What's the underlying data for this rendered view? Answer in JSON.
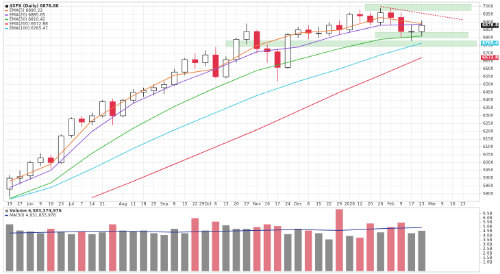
{
  "chart_data": [
    {
      "type": "candlestick",
      "title": "$SPX (Daily) 6878.88",
      "xlim": [
        -0.6,
        45.6
      ],
      "xticks": [
        {
          "value": 0,
          "label": "19"
        },
        {
          "value": 1,
          "label": "27"
        },
        {
          "value": 2,
          "label": "Jun"
        },
        {
          "value": 3,
          "label": "9"
        },
        {
          "value": 4,
          "label": "16"
        },
        {
          "value": 5,
          "label": "23"
        },
        {
          "value": 6,
          "label": "Jul"
        },
        {
          "value": 7,
          "label": "7"
        },
        {
          "value": 8,
          "label": "14"
        },
        {
          "value": 9,
          "label": "21"
        },
        {
          "value": 11,
          "label": "Aug"
        },
        {
          "value": 12,
          "label": "11"
        },
        {
          "value": 13,
          "label": "18"
        },
        {
          "value": 14,
          "label": "25"
        },
        {
          "value": 15,
          "label": "Sep"
        },
        {
          "value": 16,
          "label": "8"
        },
        {
          "value": 17,
          "label": "15"
        },
        {
          "value": 18,
          "label": "22"
        },
        {
          "value": 19,
          "label": "29Oct"
        },
        {
          "value": 20,
          "label": "6"
        },
        {
          "value": 21,
          "label": "13"
        },
        {
          "value": 22,
          "label": "20"
        },
        {
          "value": 23,
          "label": "27"
        },
        {
          "value": 24,
          "label": "Nov"
        },
        {
          "value": 25,
          "label": "10"
        },
        {
          "value": 26,
          "label": "17"
        },
        {
          "value": 27,
          "label": "24"
        },
        {
          "value": 28,
          "label": "Dec"
        },
        {
          "value": 29,
          "label": "8"
        },
        {
          "value": 30,
          "label": "15"
        },
        {
          "value": 31,
          "label": "22"
        },
        {
          "value": 32,
          "label": "29"
        },
        {
          "value": 33,
          "label": "2026"
        },
        {
          "value": 34,
          "label": "12"
        },
        {
          "value": 35,
          "label": "20"
        },
        {
          "value": 36,
          "label": "26"
        },
        {
          "value": 37,
          "label": "Feb"
        },
        {
          "value": 38,
          "label": "9"
        },
        {
          "value": 39,
          "label": "17"
        },
        {
          "value": 40,
          "label": "23"
        },
        {
          "value": 41,
          "label": "Mar"
        },
        {
          "value": 42,
          "label": "9"
        },
        {
          "value": 43,
          "label": "16"
        },
        {
          "value": 44,
          "label": "23"
        }
      ],
      "open": [
        5830,
        5900,
        5915,
        6000,
        6030,
        6000,
        6175,
        6280,
        6262,
        6300,
        6390,
        6300,
        6400,
        6452,
        6460,
        6480,
        6500,
        6580,
        6660,
        6640,
        6690,
        6550,
        6660,
        6790,
        6840,
        6730,
        6710,
        6610,
        6820,
        6850,
        6830,
        6830,
        6880,
        6850,
        6950,
        6940,
        6900,
        6960,
        6930,
        6840,
        6840
      ],
      "high": [
        5920,
        5950,
        6010,
        6060,
        6050,
        6180,
        6290,
        6300,
        6320,
        6400,
        6410,
        6410,
        6470,
        6480,
        6500,
        6520,
        6600,
        6670,
        6700,
        6720,
        6740,
        6680,
        6800,
        6890,
        6850,
        6760,
        6730,
        6830,
        6870,
        6880,
        6870,
        6900,
        6910,
        6960,
        6980,
        6960,
        6990,
        6990,
        6960,
        6880,
        6910
      ],
      "low": [
        5780,
        5860,
        5890,
        5980,
        5960,
        5990,
        6160,
        6230,
        6240,
        6290,
        6240,
        6290,
        6380,
        6420,
        6430,
        6440,
        6490,
        6560,
        6600,
        6620,
        6540,
        6540,
        6640,
        6760,
        6700,
        6640,
        6520,
        6600,
        6800,
        6790,
        6800,
        6810,
        6820,
        6840,
        6900,
        6880,
        6880,
        6880,
        6800,
        6780,
        6810
      ],
      "close": [
        5900,
        5910,
        6000,
        6030,
        6000,
        6170,
        6280,
        6260,
        6300,
        6390,
        6300,
        6400,
        6450,
        6460,
        6480,
        6500,
        6580,
        6660,
        6640,
        6690,
        6550,
        6660,
        6790,
        6840,
        6730,
        6710,
        6610,
        6820,
        6850,
        6830,
        6830,
        6880,
        6850,
        6950,
        6940,
        6900,
        6960,
        6930,
        6840,
        6840,
        6878.88
      ],
      "up_color": "#ffffff",
      "down_color": "#e0304a",
      "outline": "#222222",
      "ylim": [
        5760,
        7020
      ],
      "yticks": [
        5800,
        5850,
        5900,
        5950,
        6000,
        6050,
        6100,
        6150,
        6200,
        6250,
        6300,
        6350,
        6400,
        6450,
        6500,
        6550,
        6600,
        6650,
        6700,
        6750,
        6800,
        6850,
        6900,
        6950,
        7000
      ],
      "grid": true,
      "series": [
        {
          "name": "EMA(5) 6890.22",
          "color": "#ee7a36",
          "x": [
            0,
            4,
            8,
            12,
            16,
            20,
            24,
            28,
            32,
            36,
            40
          ],
          "values": [
            5880,
            5990,
            6270,
            6430,
            6560,
            6600,
            6750,
            6830,
            6850,
            6930,
            6890.22
          ]
        },
        {
          "name": "EMA(20) 6885.65",
          "color": "#8a52d4",
          "x": [
            0,
            4,
            8,
            12,
            16,
            20,
            24,
            28,
            32,
            36,
            40
          ],
          "values": [
            5840,
            5950,
            6200,
            6380,
            6500,
            6600,
            6710,
            6740,
            6820,
            6880,
            6885.65
          ]
        },
        {
          "name": "EMA(50) 6810.42",
          "color": "#3cb83c",
          "x": [
            0,
            4,
            8,
            12,
            16,
            20,
            24,
            28,
            32,
            36,
            40
          ],
          "values": [
            5770,
            5870,
            6060,
            6220,
            6360,
            6480,
            6590,
            6660,
            6730,
            6790,
            6810.42
          ]
        },
        {
          "name": "EMA(200) 6672.88",
          "color": "#e0304a",
          "x": [
            8,
            12,
            16,
            20,
            24,
            28,
            32,
            36,
            40
          ],
          "values": [
            5775,
            5880,
            5990,
            6100,
            6210,
            6330,
            6450,
            6560,
            6672.88
          ]
        },
        {
          "name": "EMA(100) 6765.47",
          "color": "#3ac6e0",
          "x": [
            0,
            4,
            8,
            12,
            16,
            20,
            24,
            28,
            32,
            36,
            40
          ],
          "values": [
            5765,
            5840,
            5960,
            6090,
            6210,
            6320,
            6430,
            6520,
            6600,
            6690,
            6765.47
          ]
        }
      ],
      "zones": [
        {
          "x": [
            34.5,
            44.8
          ],
          "y": [
            6975,
            7015
          ]
        },
        {
          "x": [
            35.5,
            44.5
          ],
          "y": [
            6800,
            6835
          ]
        },
        {
          "x": [
            21,
            45.3
          ],
          "y": [
            6745,
            6780
          ]
        }
      ],
      "zone_color": "#cdebcf",
      "trendline": {
        "x": [
          36,
          44
        ],
        "y": [
          7000,
          6915
        ],
        "color": "#e0304a"
      }
    },
    {
      "type": "bar",
      "title": "Volume 4,583,374,976",
      "xlim": [
        -0.6,
        45.6
      ],
      "values": [
        5300000000,
        4600000000,
        4500000000,
        4300000000,
        4800000000,
        4500000000,
        4200000000,
        4500000000,
        4200000000,
        4400000000,
        5300000000,
        4600000000,
        4500000000,
        4600000000,
        4300000000,
        4100000000,
        4800000000,
        4300000000,
        6000000000,
        4600000000,
        5600000000,
        5200000000,
        4800000000,
        4800000000,
        5000000000,
        5300000000,
        5100000000,
        4200000000,
        4800000000,
        4600000000,
        4300000000,
        3600000000,
        7000000000,
        4000000000,
        3800000000,
        5400000000,
        4400000000,
        5000000000,
        5500000000,
        4300000000,
        4583374976
      ],
      "up_color": "#8c8c8c",
      "down_color": "#e27884",
      "ylim": [
        0,
        7100000000
      ],
      "yticks": [
        {
          "value": 1000000000,
          "label": "1.0B"
        },
        {
          "value": 1500000000,
          "label": "1.5B"
        },
        {
          "value": 2000000000,
          "label": "2.0B"
        },
        {
          "value": 2500000000,
          "label": "2.5B"
        },
        {
          "value": 3000000000,
          "label": "3.0B"
        },
        {
          "value": 3500000000,
          "label": "3.5B"
        },
        {
          "value": 4000000000,
          "label": "4.0B"
        },
        {
          "value": 4500000000,
          "label": "4.5B"
        },
        {
          "value": 5000000000,
          "label": "5.0B"
        },
        {
          "value": 5500000000,
          "label": "5.5B"
        },
        {
          "value": 6000000000,
          "label": "6.0B"
        },
        {
          "value": 6500000000,
          "label": "6.5B"
        }
      ],
      "series": [
        {
          "name": "MA(50) 4,931,855,976",
          "color": "#2a3a9a",
          "x": [
            0,
            4,
            8,
            12,
            16,
            20,
            24,
            28,
            32,
            36,
            40
          ],
          "values": [
            4300000000,
            4400000000,
            4500000000,
            4500000000,
            4400000000,
            4500000000,
            4600000000,
            4700000000,
            4600000000,
            4800000000,
            4931855976
          ]
        }
      ]
    }
  ]
}
